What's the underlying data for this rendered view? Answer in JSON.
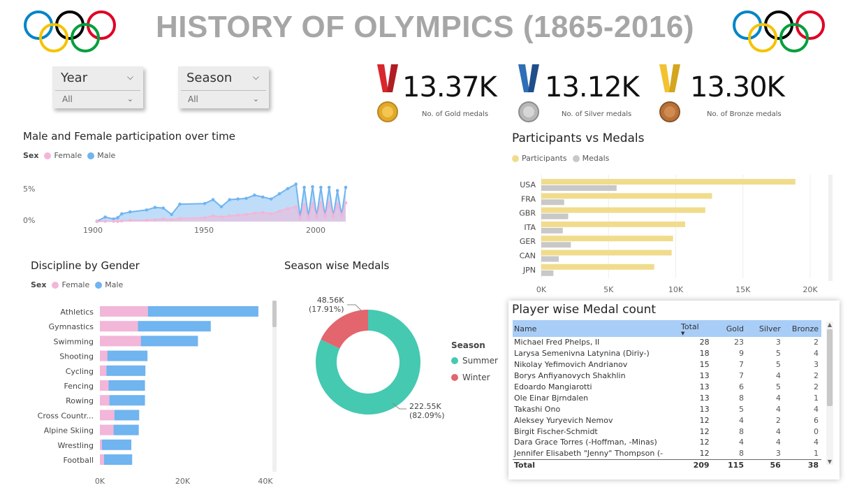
{
  "title": "HISTORY OF OLYMPICS (1865-2016)",
  "filters": {
    "year": {
      "label": "Year",
      "value": "All"
    },
    "season": {
      "label": "Season",
      "value": "All"
    }
  },
  "kpis": [
    {
      "value": "13.37K",
      "label": "No. of Gold medals",
      "icon": "gold-medal-icon",
      "ribbon": "#d9262c",
      "medal": "#e2a92c"
    },
    {
      "value": "13.12K",
      "label": "No. of Silver medals",
      "icon": "silver-medal-icon",
      "ribbon": "#2f6fb5",
      "medal": "#b8b8b8"
    },
    {
      "value": "13.30K",
      "label": "No. of Bronze medals",
      "icon": "bronze-medal-icon",
      "ribbon": "#f2c230",
      "medal": "#b8733a"
    }
  ],
  "colors": {
    "female": "#f2b6d8",
    "male": "#70b4f0",
    "participants": "#f0dc8c",
    "medals": "#c8c8c8",
    "summer": "#45c9b1",
    "winter": "#e3656e"
  },
  "participation": {
    "title": "Male and Female participation over time",
    "legend_title": "Sex",
    "legend": [
      "Female",
      "Male"
    ],
    "x_ticks": [
      "1900",
      "1950",
      "2000"
    ],
    "y_ticks": [
      "5%",
      "0%"
    ]
  },
  "participants_vs_medals": {
    "title": "Participants vs Medals",
    "legend": [
      "Participants",
      "Medals"
    ],
    "x_ticks": [
      "0K",
      "5K",
      "10K",
      "15K",
      "20K"
    ]
  },
  "discipline": {
    "title": "Discipline by Gender",
    "legend_title": "Sex",
    "legend": [
      "Female",
      "Male"
    ],
    "x_ticks": [
      "0K",
      "20K",
      "40K"
    ]
  },
  "season_medals": {
    "title": "Season wise Medals",
    "legend_title": "Season",
    "legend": [
      "Summer",
      "Winter"
    ],
    "winter_label": [
      "48.56K",
      "(17.91%)"
    ],
    "summer_label": [
      "222.55K",
      "(82.09%)"
    ]
  },
  "player_table": {
    "title": "Player wise Medal count",
    "headers": [
      "Name",
      "Total",
      "Gold",
      "Silver",
      "Bronze"
    ],
    "rows": [
      [
        "Michael Fred Phelps, II",
        "28",
        "23",
        "3",
        "2"
      ],
      [
        "Larysa Semenivna Latynina (Diriy-)",
        "18",
        "9",
        "5",
        "4"
      ],
      [
        "Nikolay Yefimovich Andrianov",
        "15",
        "7",
        "5",
        "3"
      ],
      [
        "Borys Anfiyanovych Shakhlin",
        "13",
        "7",
        "4",
        "2"
      ],
      [
        "Edoardo Mangiarotti",
        "13",
        "6",
        "5",
        "2"
      ],
      [
        "Ole Einar Bjrndalen",
        "13",
        "8",
        "4",
        "1"
      ],
      [
        "Takashi Ono",
        "13",
        "5",
        "4",
        "4"
      ],
      [
        "Aleksey Yuryevich Nemov",
        "12",
        "4",
        "2",
        "6"
      ],
      [
        "Birgit Fischer-Schmidt",
        "12",
        "8",
        "4",
        "0"
      ],
      [
        "Dara Grace Torres (-Hoffman, -Minas)",
        "12",
        "4",
        "4",
        "4"
      ],
      [
        "Jennifer Elisabeth \"Jenny\" Thompson (-",
        "12",
        "8",
        "3",
        "1"
      ]
    ],
    "total": [
      "Total",
      "209",
      "115",
      "56",
      "38"
    ]
  },
  "chart_data": [
    {
      "type": "area",
      "title": "Male and Female participation over time",
      "x": [
        1896,
        1900,
        1904,
        1906,
        1908,
        1912,
        1920,
        1924,
        1928,
        1932,
        1936,
        1948,
        1952,
        1956,
        1960,
        1964,
        1968,
        1972,
        1976,
        1980,
        1984,
        1988,
        1992,
        1994,
        1996,
        1998,
        2000,
        2002,
        2004,
        2006,
        2008,
        2010,
        2012,
        2014,
        2016
      ],
      "series": [
        {
          "name": "Male",
          "values": [
            0.05,
            0.7,
            0.4,
            0.6,
            1.2,
            1.5,
            1.8,
            2.2,
            2.1,
            1.1,
            2.7,
            2.8,
            3.4,
            2.3,
            3.4,
            3.5,
            3.6,
            4.1,
            3.8,
            3.5,
            4.3,
            5.1,
            5.8,
            0.7,
            5.3,
            0.8,
            5.4,
            0.8,
            5.3,
            0.9,
            5.3,
            0.8,
            4.8,
            1.0,
            5.3
          ]
        },
        {
          "name": "Female",
          "values": [
            0.0,
            0.05,
            0.05,
            0.03,
            0.1,
            0.2,
            0.2,
            0.3,
            0.4,
            0.3,
            0.5,
            0.6,
            0.9,
            0.7,
            0.9,
            1.0,
            1.1,
            1.3,
            1.4,
            1.2,
            1.6,
            2.0,
            2.3,
            0.4,
            2.6,
            0.5,
            2.8,
            0.6,
            2.9,
            0.7,
            2.9,
            0.7,
            2.7,
            0.8,
            2.9
          ]
        }
      ],
      "ylim": [
        0,
        6.5
      ]
    },
    {
      "type": "bar",
      "title": "Participants vs Medals",
      "categories": [
        "USA",
        "FRA",
        "GBR",
        "ITA",
        "GER",
        "CAN",
        "JPN"
      ],
      "series": [
        {
          "name": "Participants",
          "values": [
            18900,
            12700,
            12200,
            10700,
            9800,
            9700,
            8400
          ]
        },
        {
          "name": "Medals",
          "values": [
            5600,
            1700,
            2000,
            1600,
            2200,
            1300,
            900
          ]
        }
      ],
      "xlim": [
        0,
        20000
      ]
    },
    {
      "type": "bar",
      "title": "Discipline by Gender",
      "categories": [
        "Athletics",
        "Gymnastics",
        "Swimming",
        "Shooting",
        "Cycling",
        "Fencing",
        "Rowing",
        "Cross Countr...",
        "Alpine Skiing",
        "Wrestling",
        "Football"
      ],
      "series": [
        {
          "name": "Female",
          "values": [
            11600,
            9200,
            9900,
            1800,
            1600,
            2100,
            2300,
            3500,
            3300,
            500,
            1000
          ]
        },
        {
          "name": "Male",
          "values": [
            26700,
            17600,
            13800,
            9700,
            9400,
            8800,
            8600,
            6000,
            6100,
            7100,
            6800
          ]
        }
      ],
      "xlim": [
        0,
        40000
      ]
    },
    {
      "type": "pie",
      "title": "Season wise Medals",
      "categories": [
        "Summer",
        "Winter"
      ],
      "values": [
        222550,
        48560
      ]
    }
  ]
}
